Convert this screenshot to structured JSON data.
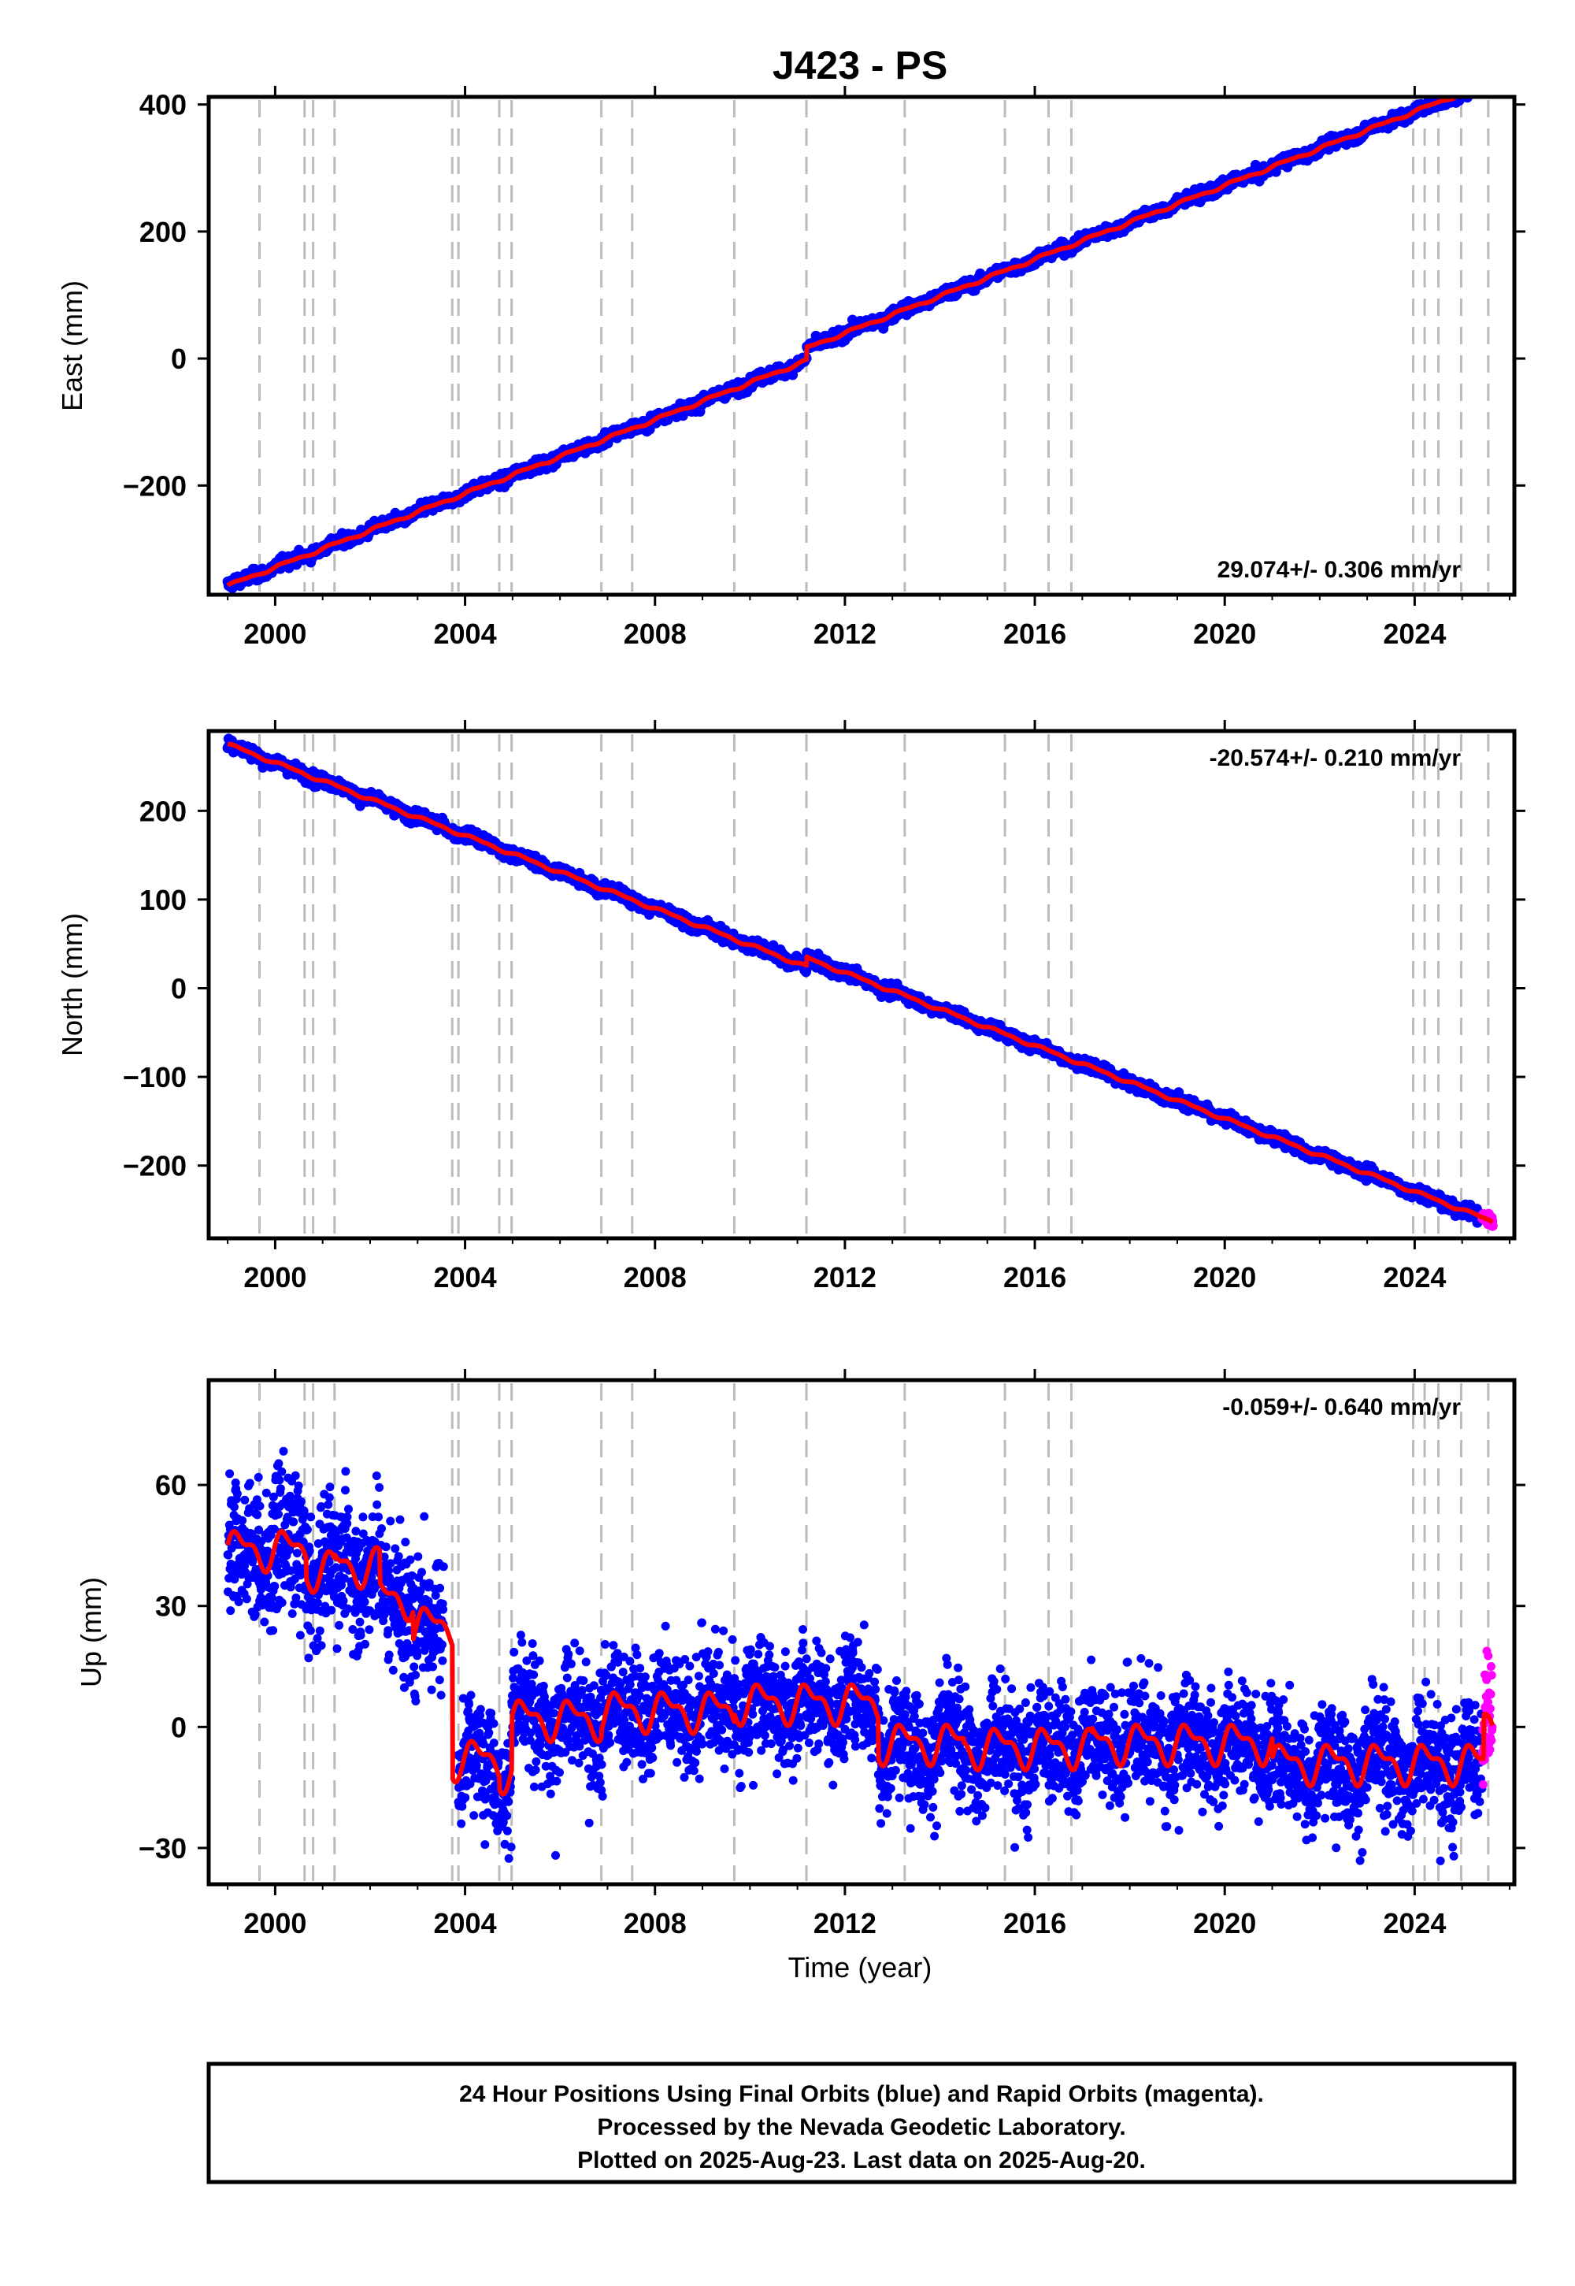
{
  "title": "J423 - PS",
  "colors": {
    "final_orbits": "#0000ff",
    "rapid_orbits": "#ff00ff",
    "model": "#ff0000",
    "event_lines": "#bbbbbb"
  },
  "xaxis": {
    "label": "Time (year)",
    "range": [
      1998.6,
      2026.1
    ],
    "ticks": [
      2000,
      2004,
      2008,
      2012,
      2016,
      2020,
      2024
    ]
  },
  "event_years": [
    1999.67,
    2000.62,
    2000.8,
    2001.25,
    2003.73,
    2003.86,
    2004.72,
    2004.98,
    2006.87,
    2007.52,
    2009.67,
    2011.19,
    2013.26,
    2015.37,
    2016.29,
    2016.77,
    2023.97,
    2024.21,
    2024.5,
    2024.98,
    2025.55
  ],
  "chart_data": [
    {
      "type": "scatter",
      "ylabel": "East (mm)",
      "ylim": [
        -372,
        412
      ],
      "yticks": [
        -200,
        0,
        200,
        400
      ],
      "rate_label": "29.074+/- 0.306 mm/yr",
      "data_start": 1999.0,
      "data_end": 2025.64,
      "rate_mm_per_yr": 29.074,
      "value_at_start": -358,
      "offsets": [
        {
          "year": 2011.19,
          "step": 20
        }
      ],
      "scatter_mm": 4.5,
      "seasonal_mm": 2.0,
      "final_orbits_end": 2025.42
    },
    {
      "type": "scatter",
      "ylabel": "North (mm)",
      "ylim": [
        -282,
        290
      ],
      "yticks": [
        -200,
        -100,
        0,
        100,
        200
      ],
      "rate_label": "-20.574+/- 0.210 mm/yr",
      "data_start": 1999.0,
      "data_end": 2025.64,
      "rate_mm_per_yr": -20.574,
      "value_at_start": 275,
      "offsets": [
        {
          "year": 2011.19,
          "step": 10
        }
      ],
      "scatter_mm": 3.5,
      "seasonal_mm": 1.5,
      "final_orbits_end": 2025.42
    },
    {
      "type": "scatter",
      "ylabel": "Up (mm)",
      "ylim": [
        -39,
        86
      ],
      "yticks": [
        -30,
        0,
        30,
        60
      ],
      "rate_label": "-0.059+/- 0.640 mm/yr",
      "data_start": 1999.0,
      "data_end": 2025.64,
      "segments": [
        {
          "start": 1999.0,
          "end": 2000.65,
          "level": 44
        },
        {
          "start": 2000.65,
          "end": 2001.25,
          "level": 39
        },
        {
          "start": 2001.25,
          "end": 2002.2,
          "level": 40
        },
        {
          "start": 2002.2,
          "end": 2002.9,
          "level": 32
        },
        {
          "start": 2002.9,
          "end": 2003.73,
          "level": 25
        },
        {
          "start": 2003.73,
          "end": 2004.72,
          "level": -8
        },
        {
          "start": 2004.72,
          "end": 2004.98,
          "level": -11
        },
        {
          "start": 2004.98,
          "end": 2006.87,
          "level": 2
        },
        {
          "start": 2006.87,
          "end": 2009.67,
          "level": 4
        },
        {
          "start": 2009.67,
          "end": 2012.7,
          "level": 6
        },
        {
          "start": 2012.7,
          "end": 2014.5,
          "level": -4
        },
        {
          "start": 2014.5,
          "end": 2017.2,
          "level": -5
        },
        {
          "start": 2017.2,
          "end": 2021.0,
          "level": -4
        },
        {
          "start": 2021.0,
          "end": 2025.45,
          "level": -9
        },
        {
          "start": 2025.45,
          "end": 2025.64,
          "level": 2
        }
      ],
      "seasonal_mm": 4.0,
      "scatter_mm": 7.0,
      "final_orbits_end": 2025.42
    }
  ],
  "footer": {
    "line1": "24 Hour Positions Using Final Orbits (blue) and Rapid Orbits (magenta).",
    "line2": "Processed by the Nevada Geodetic Laboratory.",
    "line3": "Plotted on 2025-Aug-23. Last data on 2025-Aug-20."
  }
}
